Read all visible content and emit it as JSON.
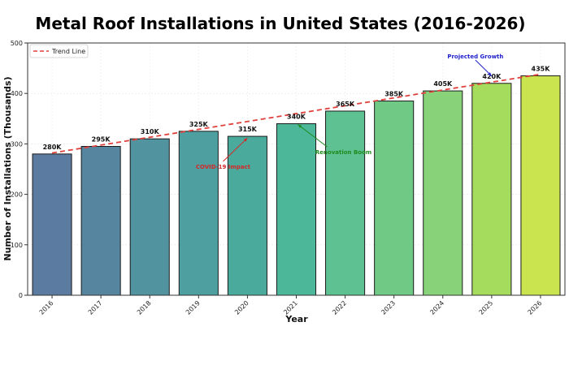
{
  "chart_data": {
    "type": "bar",
    "title": "Metal Roof Installations in United States (2016-2026)",
    "xlabel": "Year",
    "ylabel": "Number of Installations (Thousands)",
    "categories": [
      "2016",
      "2017",
      "2018",
      "2019",
      "2020",
      "2021",
      "2022",
      "2023",
      "2024",
      "2025",
      "2026"
    ],
    "values": [
      280,
      295,
      310,
      325,
      315,
      340,
      365,
      385,
      405,
      420,
      435
    ],
    "data_labels": [
      "280K",
      "295K",
      "310K",
      "325K",
      "315K",
      "340K",
      "365K",
      "385K",
      "405K",
      "420K",
      "435K"
    ],
    "ylim": [
      0,
      500
    ],
    "yticks": [
      "0",
      "100",
      "200",
      "300",
      "400",
      "500"
    ],
    "grid": true,
    "legend": {
      "placement": "top-left",
      "entries": [
        "Trend Line"
      ]
    },
    "trend_line": {
      "name": "Trend Line",
      "start": 282,
      "end": 438,
      "color": "#e0413d"
    },
    "annotations": [
      {
        "text": "COVID-19 Impact",
        "target_index": 4,
        "color": "#d62728"
      },
      {
        "text": "Renovation Boom",
        "target_index": 5,
        "color": "#1f8a1f"
      },
      {
        "text": "Projected Growth",
        "target_index": 9,
        "color": "#1f1fcc"
      }
    ],
    "colors": [
      "#5c7ba1",
      "#56869f",
      "#51939f",
      "#4da09f",
      "#4aab9c",
      "#4db79a",
      "#5ec192",
      "#70ca86",
      "#88d37a",
      "#a6dc5e",
      "#c9e44f"
    ]
  }
}
